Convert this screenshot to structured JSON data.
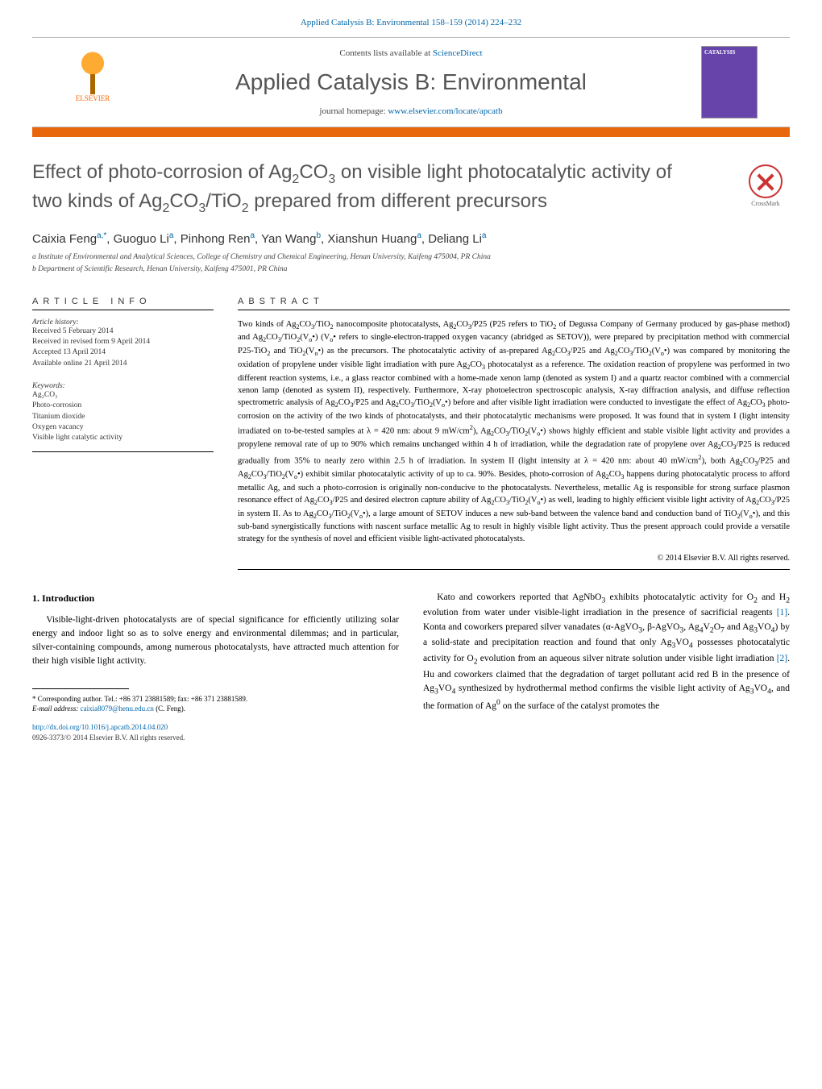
{
  "colors": {
    "accent_orange": "#e8660c",
    "link_blue": "#0066aa",
    "text_gray": "#555555",
    "body_text": "#000000"
  },
  "header": {
    "journal_ref": "Applied Catalysis B: Environmental 158–159 (2014) 224–232",
    "contents_line_prefix": "Contents lists available at ",
    "contents_line_link": "ScienceDirect",
    "journal_name": "Applied Catalysis B: Environmental",
    "homepage_prefix": "journal homepage: ",
    "homepage_link": "www.elsevier.com/locate/apcatb",
    "publisher": "ELSEVIER",
    "cover_brand": "CATALYSIS"
  },
  "crossmark_label": "CrossMark",
  "title_html": "Effect of photo-corrosion of Ag<sub>2</sub>CO<sub>3</sub> on visible light photocatalytic activity of two kinds of Ag<sub>2</sub>CO<sub>3</sub>/TiO<sub>2</sub> prepared from different precursors",
  "authors_html": "Caixia Feng<sup>a,*</sup>, Guoguo Li<sup>a</sup>, Pinhong Ren<sup>a</sup>, Yan Wang<sup>b</sup>, Xianshun Huang<sup>a</sup>, Deliang Li<sup>a</sup>",
  "affiliations": [
    "a Institute of Environmental and Analytical Sciences, College of Chemistry and Chemical Engineering, Henan University, Kaifeng 475004, PR China",
    "b Department of Scientific Research, Henan University, Kaifeng 475001, PR China"
  ],
  "article_info": {
    "head": "ARTICLE INFO",
    "history_label": "Article history:",
    "history": [
      "Received 5 February 2014",
      "Received in revised form 9 April 2014",
      "Accepted 13 April 2014",
      "Available online 21 April 2014"
    ],
    "keywords_label": "Keywords:",
    "keywords": [
      "Ag₂CO₃",
      "Photo-corrosion",
      "Titanium dioxide",
      "Oxygen vacancy",
      "Visible light catalytic activity"
    ]
  },
  "abstract": {
    "head": "ABSTRACT",
    "text_html": "Two kinds of Ag<sub>2</sub>CO<sub>3</sub>/TiO<sub>2</sub> nanocomposite photocatalysts, Ag<sub>2</sub>CO<sub>3</sub>/P25 (P25 refers to TiO<sub>2</sub> of Degussa Company of Germany produced by gas-phase method) and Ag<sub>2</sub>CO<sub>3</sub>/TiO<sub>2</sub>(V<sub>o</sub>•) (V<sub>o</sub>• refers to single-electron-trapped oxygen vacancy (abridged as SETOV)), were prepared by precipitation method with commercial P25-TiO<sub>2</sub> and TiO<sub>2</sub>(V<sub>o</sub>•) as the precursors. The photocatalytic activity of as-prepared Ag<sub>2</sub>CO<sub>3</sub>/P25 and Ag<sub>2</sub>CO<sub>3</sub>/TiO<sub>2</sub>(V<sub>o</sub>•) was compared by monitoring the oxidation of propylene under visible light irradiation with pure Ag<sub>2</sub>CO<sub>3</sub> photocatalyst as a reference. The oxidation reaction of propylene was performed in two different reaction systems, i.e., a glass reactor combined with a home-made xenon lamp (denoted as system I) and a quartz reactor combined with a commercial xenon lamp (denoted as system II), respectively. Furthermore, X-ray photoelectron spectroscopic analysis, X-ray diffraction analysis, and diffuse reflection spectrometric analysis of Ag<sub>2</sub>CO<sub>3</sub>/P25 and Ag<sub>2</sub>CO<sub>3</sub>/TiO<sub>2</sub>(V<sub>o</sub>•) before and after visible light irradiation were conducted to investigate the effect of Ag<sub>2</sub>CO<sub>3</sub> photo-corrosion on the activity of the two kinds of photocatalysts, and their photocatalytic mechanisms were proposed. It was found that in system I (light intensity irradiated on to-be-tested samples at λ = 420 nm: about 9 mW/cm<sup>2</sup>), Ag<sub>2</sub>CO<sub>3</sub>/TiO<sub>2</sub>(V<sub>o</sub>•) shows highly efficient and stable visible light activity and provides a propylene removal rate of up to 90% which remains unchanged within 4 h of irradiation, while the degradation rate of propylene over Ag<sub>2</sub>CO<sub>3</sub>/P25 is reduced gradually from 35% to nearly zero within 2.5 h of irradiation. In system II (light intensity at λ = 420 nm: about 40 mW/cm<sup>2</sup>), both Ag<sub>2</sub>CO<sub>3</sub>/P25 and Ag<sub>2</sub>CO<sub>3</sub>/TiO<sub>2</sub>(V<sub>o</sub>•) exhibit similar photocatalytic activity of up to ca. 90%. Besides, photo-corrosion of Ag<sub>2</sub>CO<sub>3</sub> happens during photocatalytic process to afford metallic Ag, and such a photo-corrosion is originally non-conducive to the photocatalysts. Nevertheless, metallic Ag is responsible for strong surface plasmon resonance effect of Ag<sub>2</sub>CO<sub>3</sub>/P25 and desired electron capture ability of Ag<sub>2</sub>CO<sub>3</sub>/TiO<sub>2</sub>(V<sub>o</sub>•) as well, leading to highly efficient visible light activity of Ag<sub>2</sub>CO<sub>3</sub>/P25 in system II. As to Ag<sub>2</sub>CO<sub>3</sub>/TiO<sub>2</sub>(V<sub>o</sub>•), a large amount of SETOV induces a new sub-band between the valence band and conduction band of TiO<sub>2</sub>(V<sub>o</sub>•), and this sub-band synergistically functions with nascent surface metallic Ag to result in highly visible light activity. Thus the present approach could provide a versatile strategy for the synthesis of novel and efficient visible light-activated photocatalysts.",
    "copyright": "© 2014 Elsevier B.V. All rights reserved."
  },
  "intro": {
    "head": "1. Introduction",
    "col1_html": "Visible-light-driven photocatalysts are of special significance for efficiently utilizing solar energy and indoor light so as to solve energy and environmental dilemmas; and in particular, silver-containing compounds, among numerous photocatalysts, have attracted much attention for their high visible light activity.",
    "col2_html": "Kato and coworkers reported that AgNbO<sub>3</sub> exhibits photocatalytic activity for O<sub>2</sub> and H<sub>2</sub> evolution from water under visible-light irradiation in the presence of sacrificial reagents <a class=\"ref\" href=\"#\">[1]</a>. Konta and coworkers prepared silver vanadates (α-AgVO<sub>3</sub>, β-AgVO<sub>3</sub>, Ag<sub>4</sub>V<sub>2</sub>O<sub>7</sub> and Ag<sub>3</sub>VO<sub>4</sub>) by a solid-state and precipitation reaction and found that only Ag<sub>3</sub>VO<sub>4</sub> possesses photocatalytic activity for O<sub>2</sub> evolution from an aqueous silver nitrate solution under visible light irradiation <a class=\"ref\" href=\"#\">[2]</a>. Hu and coworkers claimed that the degradation of target pollutant acid red B in the presence of Ag<sub>3</sub>VO<sub>4</sub> synthesized by hydrothermal method confirms the visible light activity of Ag<sub>3</sub>VO<sub>4</sub>, and the formation of Ag<sup>0</sup> on the surface of the catalyst promotes the"
  },
  "footnotes": {
    "corr": "* Corresponding author. Tel.: +86 371 23881589; fax: +86 371 23881589.",
    "email_label": "E-mail address: ",
    "email": "caixia8079@henu.edu.cn",
    "email_suffix": " (C. Feng)."
  },
  "doi": {
    "url": "http://dx.doi.org/10.1016/j.apcatb.2014.04.020",
    "issn": "0926-3373/© 2014 Elsevier B.V. All rights reserved."
  }
}
